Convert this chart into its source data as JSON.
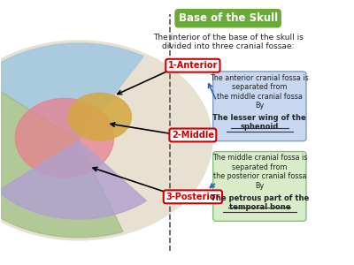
{
  "title": "Base of the Skull",
  "title_bg": "#6aaa3a",
  "subtitle": "The interior of the base of the skull is\ndivided into three cranial fossae:",
  "label1": "1-Anterior",
  "label2": "2-Middle",
  "label3": "3-Posterior",
  "label_bg": "#ffffff",
  "label_border": "#cc0000",
  "box1_text": "The anterior cranial fossa is\nseparated from\nthe middle cranial fossa\nBy",
  "box1_bold": "The lesser wing of the\nsphenoid",
  "box1_bg": "#c8d8f0",
  "box2_text": "The middle cranial fossa is\nseparated from\nthe posterior cranial fossa\nBy",
  "box2_bold": "The petrous part of the\ntemporal bone",
  "box2_bg": "#d8ecc8",
  "dashed_line_x": 0.48,
  "fig_bg": "#ffffff",
  "arrow_color": "#3366aa"
}
